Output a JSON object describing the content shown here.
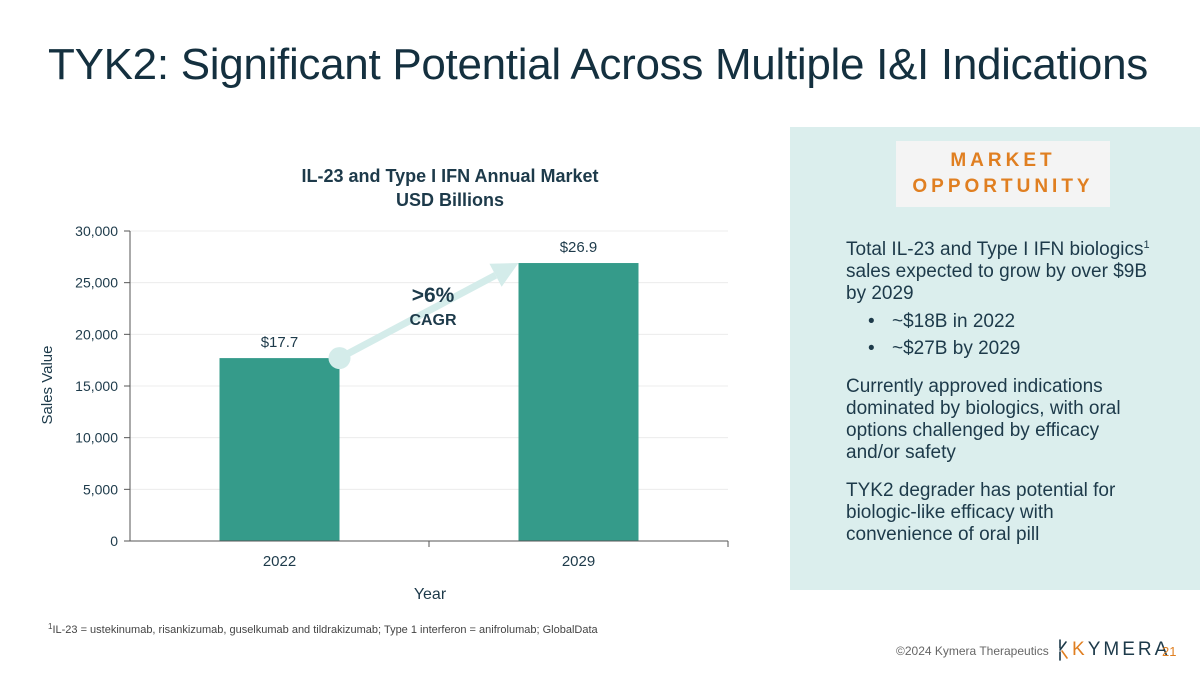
{
  "title": "TYK2: Significant Potential Across Multiple I&I Indications",
  "chart_data": {
    "type": "bar",
    "title_line1": "IL-23 and Type I IFN Annual Market",
    "title_line2": "USD Billions",
    "categories": [
      "2022",
      "2029"
    ],
    "values": [
      17700,
      26900
    ],
    "data_labels": [
      "$17.7",
      "$26.9"
    ],
    "xlabel": "Year",
    "ylabel": "Sales Value",
    "ylim": [
      0,
      30000
    ],
    "yticks": [
      0,
      5000,
      10000,
      15000,
      20000,
      25000,
      30000
    ],
    "ytick_labels": [
      "0",
      "5,000",
      "10,000",
      "15,000",
      "20,000",
      "25,000",
      "30,000"
    ],
    "bar_color": "#359b8a",
    "annotation": {
      "value": ">6%",
      "label": "CAGR"
    }
  },
  "panel": {
    "badge_line1": "MARKET",
    "badge_line2": "OPPORTUNITY",
    "para1_a": "Total IL-23 and Type I IFN biologics",
    "para1_sup": "1",
    "para1_b": " sales expected to grow by over $9B by 2029",
    "bullets": [
      "~$18B in 2022",
      "~$27B by 2029"
    ],
    "bullet_char": "•",
    "para2": "Currently approved indications dominated by biologics, with oral options challenged by efficacy and/or safety",
    "para3": "TYK2 degrader has potential for biologic-like efficacy with convenience of oral pill"
  },
  "footnote": {
    "sup": "1",
    "text": "IL-23 = ustekinumab, risankizumab, guselkumab and tildrakizumab; Type 1 interferon = anifrolumab; GlobalData"
  },
  "footer": {
    "copyright": "©2024 Kymera Therapeutics",
    "logo_first": "K",
    "logo_rest": "YMERA",
    "page_number": "21"
  },
  "colors": {
    "accent": "#e07f21",
    "bar": "#359b8a",
    "panel_bg": "#dbeeed",
    "arrow": "#d4ecea"
  }
}
